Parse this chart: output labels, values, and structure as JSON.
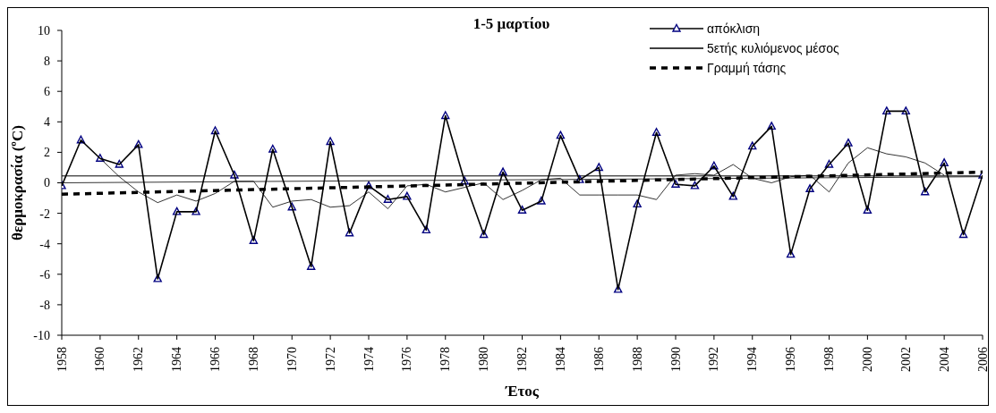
{
  "chart_data": {
    "type": "line",
    "title": "1-5 μαρτίου",
    "xlabel": "Έτος",
    "ylabel": "θερμοκρασία (ºC)",
    "xlim": [
      1958,
      2006
    ],
    "xticks": [
      1958,
      1960,
      1962,
      1964,
      1966,
      1968,
      1970,
      1972,
      1974,
      1976,
      1978,
      1980,
      1982,
      1984,
      1986,
      1988,
      1990,
      1992,
      1994,
      1996,
      1998,
      2000,
      2002,
      2004,
      2006
    ],
    "ylim": [
      -10,
      10
    ],
    "yticks": [
      -10,
      -8,
      -6,
      -4,
      -2,
      0,
      2,
      4,
      6,
      8,
      10
    ],
    "grid": false,
    "legend": "top right",
    "ref_lines": [
      {
        "axis": "y",
        "value": 0.45,
        "color": "#000000"
      }
    ],
    "series": [
      {
        "name": "απόκλιση",
        "color": "#000000",
        "marker": "triangle",
        "x": [
          1958,
          1959,
          1960,
          1961,
          1962,
          1963,
          1964,
          1965,
          1966,
          1967,
          1968,
          1969,
          1970,
          1971,
          1972,
          1973,
          1974,
          1975,
          1976,
          1977,
          1978,
          1979,
          1980,
          1981,
          1982,
          1983,
          1984,
          1985,
          1986,
          1987,
          1988,
          1989,
          1990,
          1991,
          1992,
          1993,
          1994,
          1995,
          1996,
          1997,
          1998,
          1999,
          2000,
          2001,
          2002,
          2003,
          2004,
          2005,
          2006
        ],
        "values": [
          -0.2,
          2.8,
          1.6,
          1.2,
          2.5,
          -6.3,
          -1.9,
          -1.9,
          3.4,
          0.5,
          -3.8,
          2.2,
          -1.6,
          -5.5,
          2.7,
          -3.3,
          -0.2,
          -1.1,
          -0.9,
          -3.1,
          4.4,
          0.1,
          -3.4,
          0.7,
          -1.8,
          -1.2,
          3.1,
          0.2,
          1.0,
          -7.0,
          -1.4,
          3.3,
          -0.1,
          -0.2,
          1.1,
          -0.9,
          2.4,
          3.7,
          -4.7,
          -0.4,
          1.2,
          2.6,
          -1.8,
          4.7,
          4.7,
          -0.6,
          1.3,
          -3.4,
          0.5
        ]
      },
      {
        "name": "5ετής κυλιόμενος μέσος",
        "color": "#000000",
        "marker": "none",
        "x": [
          1960,
          1961,
          1962,
          1963,
          1964,
          1965,
          1966,
          1967,
          1968,
          1969,
          1970,
          1971,
          1972,
          1973,
          1974,
          1975,
          1976,
          1977,
          1978,
          1979,
          1980,
          1981,
          1982,
          1983,
          1984,
          1985,
          1986,
          1987,
          1988,
          1989,
          1990,
          1991,
          1992,
          1993,
          1994,
          1995,
          1996,
          1997,
          1998,
          1999,
          2000,
          2001,
          2002,
          2003,
          2004
        ],
        "values": [
          1.6,
          0.4,
          -0.6,
          -1.3,
          -0.8,
          -1.2,
          -0.7,
          0.1,
          0.1,
          -1.6,
          -1.2,
          -1.1,
          -1.6,
          -1.5,
          -0.6,
          -1.7,
          -0.2,
          -0.1,
          -0.6,
          -0.3,
          0.0,
          -1.1,
          -0.5,
          0.2,
          0.3,
          -0.8,
          -0.8,
          -0.8,
          -0.8,
          -1.1,
          0.5,
          0.6,
          0.5,
          1.2,
          0.3,
          0.0,
          0.4,
          0.5,
          -0.6,
          1.3,
          2.3,
          1.9,
          1.7,
          1.3,
          0.5
        ]
      },
      {
        "name": "Γραμμή τάσης",
        "color": "#000000",
        "marker": "none",
        "line_style": "dashed",
        "x": [
          1958,
          2006
        ],
        "values": [
          -0.75,
          0.7
        ]
      },
      {
        "color": "#000000",
        "marker": "none",
        "x": [
          1958,
          2006
        ],
        "values": [
          0.0,
          0.4
        ]
      }
    ]
  }
}
